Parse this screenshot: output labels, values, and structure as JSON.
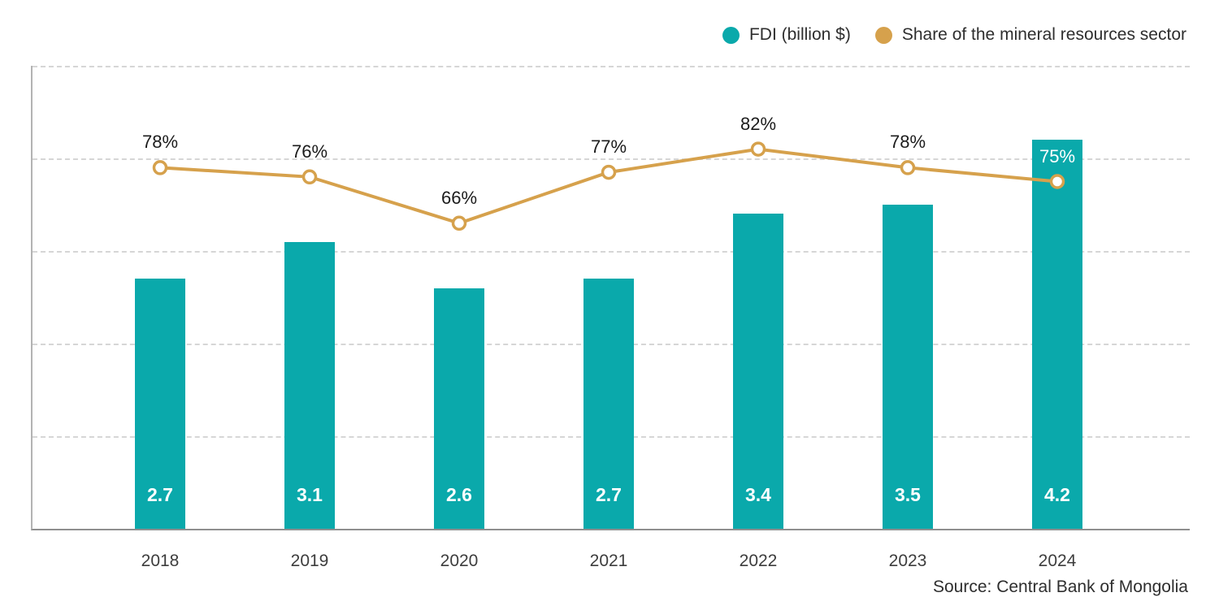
{
  "legend": {
    "items": [
      {
        "label": "FDI (billion $)",
        "color": "#0aa9ab"
      },
      {
        "label": "Share of the mineral resources sector",
        "color": "#d6a14c"
      }
    ]
  },
  "source_note": "Source: Central Bank of Mongolia",
  "chart_data": {
    "type": "bar",
    "title": "",
    "xlabel": "",
    "ylabel": "",
    "grid": "horizontal-dashed",
    "legend_position": "top-right",
    "categories": [
      "2018",
      "2019",
      "2020",
      "2021",
      "2022",
      "2023",
      "2024"
    ],
    "series": [
      {
        "name": "FDI (billion $)",
        "type": "bar",
        "color": "#0aa9ab",
        "values": [
          2.7,
          3.1,
          2.6,
          2.7,
          3.4,
          3.5,
          4.2
        ],
        "data_labels": [
          "2.7",
          "3.1",
          "2.6",
          "2.7",
          "3.4",
          "3.5",
          "4.2"
        ],
        "axis": {
          "min": 0,
          "max": 5,
          "grid_step": 1
        }
      },
      {
        "name": "Share of the mineral resources sector",
        "type": "line",
        "color": "#d6a14c",
        "marker": "open-circle",
        "values": [
          78,
          76,
          66,
          77,
          82,
          78,
          75
        ],
        "data_labels": [
          "78%",
          "76%",
          "66%",
          "77%",
          "82%",
          "78%",
          "75%"
        ],
        "axis": {
          "min": 0,
          "max": 100
        }
      }
    ]
  }
}
